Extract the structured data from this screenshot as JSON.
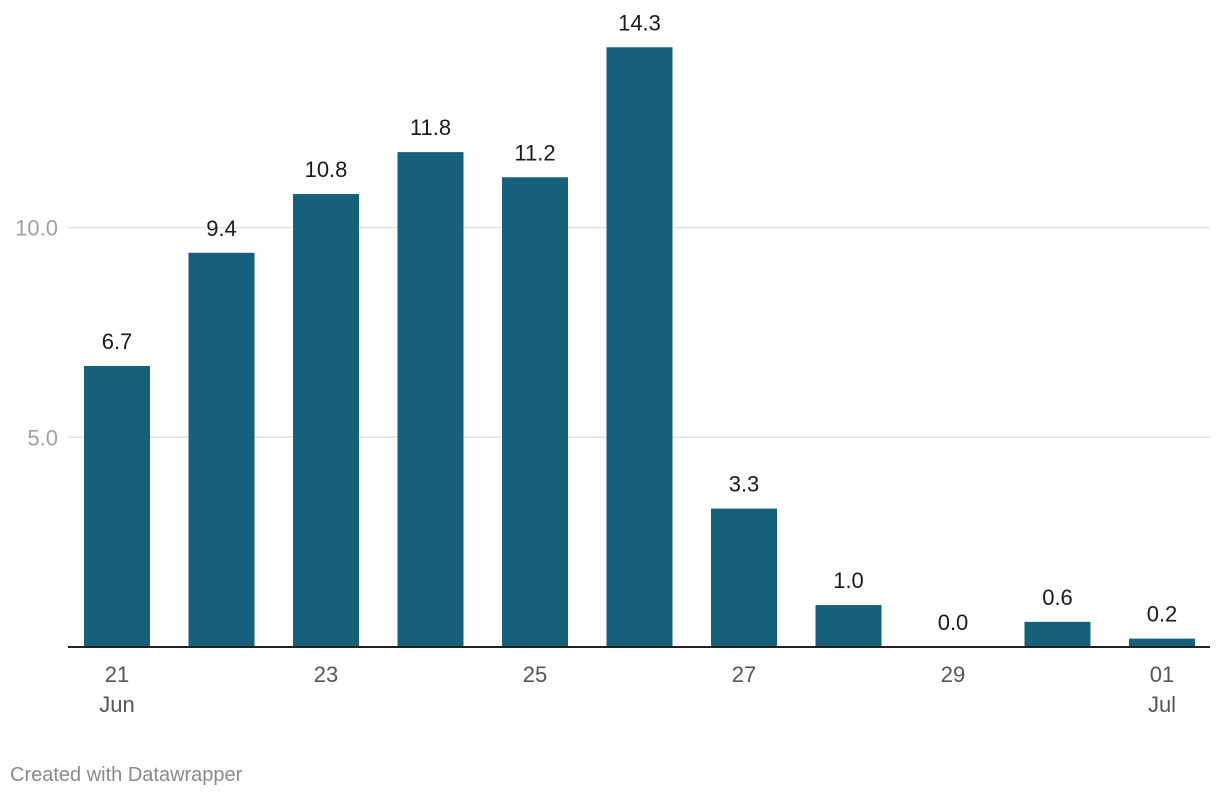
{
  "chart_data": {
    "type": "bar",
    "categories": [
      "21 Jun",
      "22 Jun",
      "23 Jun",
      "24 Jun",
      "25 Jun",
      "26 Jun",
      "27 Jun",
      "28 Jun",
      "29 Jun",
      "30 Jun",
      "01 Jul"
    ],
    "values": [
      6.7,
      9.4,
      10.8,
      11.8,
      11.2,
      14.3,
      3.3,
      1.0,
      0.0,
      0.6,
      0.2
    ],
    "value_labels": [
      "6.7",
      "9.4",
      "10.8",
      "11.8",
      "11.2",
      "14.3",
      "3.3",
      "1.0",
      "0.0",
      "0.6",
      "0.2"
    ],
    "x_ticks": [
      {
        "index": 0,
        "day": "21",
        "month": "Jun"
      },
      {
        "index": 2,
        "day": "23",
        "month": ""
      },
      {
        "index": 4,
        "day": "25",
        "month": ""
      },
      {
        "index": 6,
        "day": "27",
        "month": ""
      },
      {
        "index": 8,
        "day": "29",
        "month": ""
      },
      {
        "index": 10,
        "day": "01",
        "month": "Jul"
      }
    ],
    "y_ticks": [
      {
        "value": 5.0,
        "label": "5.0"
      },
      {
        "value": 10.0,
        "label": "10.0"
      }
    ],
    "ylim": [
      0,
      15
    ],
    "title": "",
    "xlabel": "",
    "ylabel": "",
    "grid": true,
    "bar_color": "#17607b",
    "grid_color": "#e3e3e3",
    "baseline_color": "#222222"
  },
  "footer": {
    "credit": "Created with Datawrapper"
  }
}
